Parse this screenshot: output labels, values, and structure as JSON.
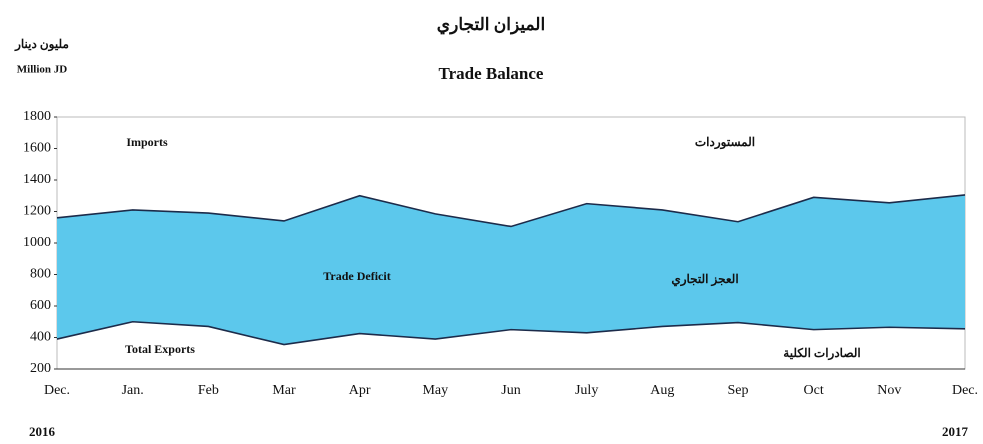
{
  "chart_data": {
    "type": "area_between",
    "title_ar": "الميزان التجاري",
    "title": "Trade Balance",
    "unit_ar": "مليون دينار",
    "unit": "Million JD",
    "categories": [
      "Dec.",
      "Jan.",
      "Feb",
      "Mar",
      "Apr",
      "May",
      "Jun",
      "July",
      "Aug",
      "Sep",
      "Oct",
      "Nov",
      "Dec."
    ],
    "years": [
      "2016",
      "2017"
    ],
    "series": [
      {
        "name": "Imports",
        "name_ar": "المستوردات",
        "color": "#1c2b4a",
        "values": [
          1160,
          1210,
          1190,
          1140,
          1300,
          1185,
          1105,
          1250,
          1210,
          1135,
          1290,
          1255,
          1305
        ]
      },
      {
        "name": "Total Exports",
        "name_ar": "الصادرات الكلية",
        "color": "#1c2b4a",
        "values": [
          390,
          500,
          470,
          355,
          425,
          390,
          450,
          430,
          470,
          495,
          450,
          465,
          455
        ]
      }
    ],
    "deficit_label": "Trade Deficit",
    "deficit_label_ar": "العجز التجاري",
    "fill_color": "#5cc8ec",
    "ylim": [
      200,
      1800
    ],
    "yticks": [
      200,
      400,
      600,
      800,
      1000,
      1200,
      1400,
      1600,
      1800
    ]
  }
}
